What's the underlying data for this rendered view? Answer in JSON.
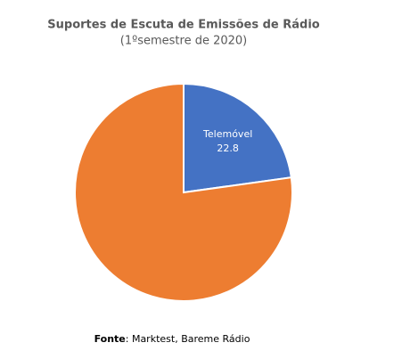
{
  "chart_data": {
    "type": "pie",
    "title": "Suportes de Escuta de Emissões de Rádio",
    "subtitle": "(1ºsemestre de 2020)",
    "categories": [
      "Telemóvel",
      null
    ],
    "values": [
      22.8,
      77.2
    ],
    "colors": [
      "#4472c4",
      "#ed7d31"
    ],
    "source_label": "Fonte",
    "source": ": Marktest, Bareme Rádio"
  }
}
